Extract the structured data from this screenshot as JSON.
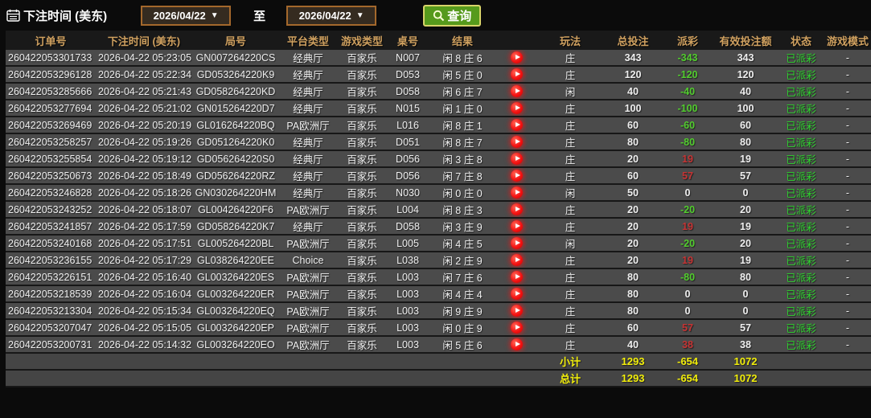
{
  "toolbar": {
    "label": "下注时间 (美东)",
    "date_from": "2026/04/22",
    "to_label": "至",
    "date_to": "2026/04/22",
    "search_label": "查询",
    "caret": "▼"
  },
  "colors": {
    "accent_gold": "#d0a160",
    "payout_negative_green": "#52cd2e",
    "payout_positive_red": "#c53434",
    "status_green": "#2ed32e",
    "summary_yellow": "#f2ee0a",
    "button_green": "#569a1c",
    "date_border_brown": "#a4682c"
  },
  "table": {
    "columns": [
      "订单号",
      "下注时间 (美东)",
      "局号",
      "平台类型",
      "游戏类型",
      "桌号",
      "结果",
      "",
      "玩法",
      "总投注",
      "派彩",
      "有效投注额",
      "状态",
      "游戏模式"
    ],
    "play_icon": "play-video-icon",
    "rows": [
      {
        "order_id": "260422053301733",
        "bet_time": "2026-04-22 05:23:05",
        "round_id": "GN007264220CS",
        "platform": "经典厅",
        "game_type": "百家乐",
        "table_no": "N007",
        "result": "闲 8 庄 6",
        "play": "庄",
        "total_bet": "343",
        "payout": "-343",
        "valid_bet": "343",
        "status": "已派彩",
        "game_mode": "-"
      },
      {
        "order_id": "260422053296128",
        "bet_time": "2026-04-22 05:22:34",
        "round_id": "GD053264220K9",
        "platform": "经典厅",
        "game_type": "百家乐",
        "table_no": "D053",
        "result": "闲 5 庄 0",
        "play": "庄",
        "total_bet": "120",
        "payout": "-120",
        "valid_bet": "120",
        "status": "已派彩",
        "game_mode": "-"
      },
      {
        "order_id": "260422053285666",
        "bet_time": "2026-04-22 05:21:43",
        "round_id": "GD058264220KD",
        "platform": "经典厅",
        "game_type": "百家乐",
        "table_no": "D058",
        "result": "闲 6 庄 7",
        "play": "闲",
        "total_bet": "40",
        "payout": "-40",
        "valid_bet": "40",
        "status": "已派彩",
        "game_mode": "-"
      },
      {
        "order_id": "260422053277694",
        "bet_time": "2026-04-22 05:21:02",
        "round_id": "GN015264220D7",
        "platform": "经典厅",
        "game_type": "百家乐",
        "table_no": "N015",
        "result": "闲 1 庄 0",
        "play": "庄",
        "total_bet": "100",
        "payout": "-100",
        "valid_bet": "100",
        "status": "已派彩",
        "game_mode": "-"
      },
      {
        "order_id": "260422053269469",
        "bet_time": "2026-04-22 05:20:19",
        "round_id": "GL016264220BQ",
        "platform": "PA欧洲厅",
        "game_type": "百家乐",
        "table_no": "L016",
        "result": "闲 8 庄 1",
        "play": "庄",
        "total_bet": "60",
        "payout": "-60",
        "valid_bet": "60",
        "status": "已派彩",
        "game_mode": "-"
      },
      {
        "order_id": "260422053258257",
        "bet_time": "2026-04-22 05:19:26",
        "round_id": "GD051264220K0",
        "platform": "经典厅",
        "game_type": "百家乐",
        "table_no": "D051",
        "result": "闲 8 庄 7",
        "play": "庄",
        "total_bet": "80",
        "payout": "-80",
        "valid_bet": "80",
        "status": "已派彩",
        "game_mode": "-"
      },
      {
        "order_id": "260422053255854",
        "bet_time": "2026-04-22 05:19:12",
        "round_id": "GD056264220S0",
        "platform": "经典厅",
        "game_type": "百家乐",
        "table_no": "D056",
        "result": "闲 3 庄 8",
        "play": "庄",
        "total_bet": "20",
        "payout": "19",
        "valid_bet": "19",
        "status": "已派彩",
        "game_mode": "-"
      },
      {
        "order_id": "260422053250673",
        "bet_time": "2026-04-22 05:18:49",
        "round_id": "GD056264220RZ",
        "platform": "经典厅",
        "game_type": "百家乐",
        "table_no": "D056",
        "result": "闲 7 庄 8",
        "play": "庄",
        "total_bet": "60",
        "payout": "57",
        "valid_bet": "57",
        "status": "已派彩",
        "game_mode": "-"
      },
      {
        "order_id": "260422053246828",
        "bet_time": "2026-04-22 05:18:26",
        "round_id": "GN030264220HM",
        "platform": "经典厅",
        "game_type": "百家乐",
        "table_no": "N030",
        "result": "闲 0 庄 0",
        "play": "闲",
        "total_bet": "50",
        "payout": "0",
        "valid_bet": "0",
        "status": "已派彩",
        "game_mode": "-"
      },
      {
        "order_id": "260422053243252",
        "bet_time": "2026-04-22 05:18:07",
        "round_id": "GL004264220F6",
        "platform": "PA欧洲厅",
        "game_type": "百家乐",
        "table_no": "L004",
        "result": "闲 8 庄 3",
        "play": "庄",
        "total_bet": "20",
        "payout": "-20",
        "valid_bet": "20",
        "status": "已派彩",
        "game_mode": "-"
      },
      {
        "order_id": "260422053241857",
        "bet_time": "2026-04-22 05:17:59",
        "round_id": "GD058264220K7",
        "platform": "经典厅",
        "game_type": "百家乐",
        "table_no": "D058",
        "result": "闲 3 庄 9",
        "play": "庄",
        "total_bet": "20",
        "payout": "19",
        "valid_bet": "19",
        "status": "已派彩",
        "game_mode": "-"
      },
      {
        "order_id": "260422053240168",
        "bet_time": "2026-04-22 05:17:51",
        "round_id": "GL005264220BL",
        "platform": "PA欧洲厅",
        "game_type": "百家乐",
        "table_no": "L005",
        "result": "闲 4 庄 5",
        "play": "闲",
        "total_bet": "20",
        "payout": "-20",
        "valid_bet": "20",
        "status": "已派彩",
        "game_mode": "-"
      },
      {
        "order_id": "260422053236155",
        "bet_time": "2026-04-22 05:17:29",
        "round_id": "GL038264220EE",
        "platform": "Choice",
        "game_type": "百家乐",
        "table_no": "L038",
        "result": "闲 2 庄 9",
        "play": "庄",
        "total_bet": "20",
        "payout": "19",
        "valid_bet": "19",
        "status": "已派彩",
        "game_mode": "-"
      },
      {
        "order_id": "260422053226151",
        "bet_time": "2026-04-22 05:16:40",
        "round_id": "GL003264220ES",
        "platform": "PA欧洲厅",
        "game_type": "百家乐",
        "table_no": "L003",
        "result": "闲 7 庄 6",
        "play": "庄",
        "total_bet": "80",
        "payout": "-80",
        "valid_bet": "80",
        "status": "已派彩",
        "game_mode": "-"
      },
      {
        "order_id": "260422053218539",
        "bet_time": "2026-04-22 05:16:04",
        "round_id": "GL003264220ER",
        "platform": "PA欧洲厅",
        "game_type": "百家乐",
        "table_no": "L003",
        "result": "闲 4 庄 4",
        "play": "庄",
        "total_bet": "80",
        "payout": "0",
        "valid_bet": "0",
        "status": "已派彩",
        "game_mode": "-"
      },
      {
        "order_id": "260422053213304",
        "bet_time": "2026-04-22 05:15:34",
        "round_id": "GL003264220EQ",
        "platform": "PA欧洲厅",
        "game_type": "百家乐",
        "table_no": "L003",
        "result": "闲 9 庄 9",
        "play": "庄",
        "total_bet": "80",
        "payout": "0",
        "valid_bet": "0",
        "status": "已派彩",
        "game_mode": "-"
      },
      {
        "order_id": "260422053207047",
        "bet_time": "2026-04-22 05:15:05",
        "round_id": "GL003264220EP",
        "platform": "PA欧洲厅",
        "game_type": "百家乐",
        "table_no": "L003",
        "result": "闲 0 庄 9",
        "play": "庄",
        "total_bet": "60",
        "payout": "57",
        "valid_bet": "57",
        "status": "已派彩",
        "game_mode": "-"
      },
      {
        "order_id": "260422053200731",
        "bet_time": "2026-04-22 05:14:32",
        "round_id": "GL003264220EO",
        "platform": "PA欧洲厅",
        "game_type": "百家乐",
        "table_no": "L003",
        "result": "闲 5 庄 6",
        "play": "庄",
        "total_bet": "40",
        "payout": "38",
        "valid_bet": "38",
        "status": "已派彩",
        "game_mode": "-"
      }
    ],
    "subtotal": {
      "label": "小计",
      "total_bet": "1293",
      "payout": "-654",
      "valid_bet": "1072"
    },
    "total": {
      "label": "总计",
      "total_bet": "1293",
      "payout": "-654",
      "valid_bet": "1072"
    }
  }
}
